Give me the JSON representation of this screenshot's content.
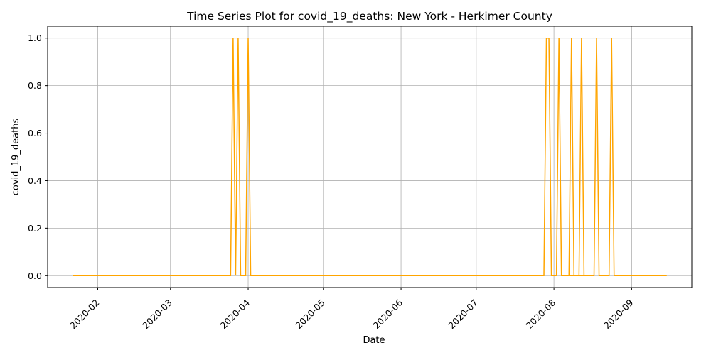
{
  "chart_data": {
    "type": "line",
    "title": "Time Series Plot for covid_19_deaths: New York - Herkimer County",
    "xlabel": "Date",
    "ylabel": "covid_19_deaths",
    "xlim": [
      "2020-01-12",
      "2020-09-25"
    ],
    "ylim": [
      -0.05,
      1.05
    ],
    "grid": true,
    "legend": "none",
    "line_color": "#ffa500",
    "x_ticks": [
      "2020-02",
      "2020-03",
      "2020-04",
      "2020-05",
      "2020-06",
      "2020-07",
      "2020-08",
      "2020-09"
    ],
    "y_ticks": [
      "0.0",
      "0.2",
      "0.4",
      "0.6",
      "0.8",
      "1.0"
    ],
    "series": [
      {
        "x": [
          "2020-01-22",
          "2020-03-25",
          "2020-03-26",
          "2020-03-27",
          "2020-03-28",
          "2020-03-29",
          "2020-03-30",
          "2020-03-31",
          "2020-04-01",
          "2020-04-02",
          "2020-07-28",
          "2020-07-29",
          "2020-07-30",
          "2020-07-31",
          "2020-08-01",
          "2020-08-02",
          "2020-08-03",
          "2020-08-04",
          "2020-08-17",
          "2020-08-18",
          "2020-08-19",
          "2020-08-23",
          "2020-08-24",
          "2020-08-25",
          "2020-09-15"
        ],
        "values": [
          0,
          0,
          1,
          0,
          1,
          0,
          0,
          0,
          1,
          0,
          0,
          1,
          1,
          0,
          0,
          0,
          1,
          0,
          0,
          1,
          0,
          0,
          1,
          0,
          0
        ]
      },
      {
        "x": [
          "2020-08-07",
          "2020-08-08",
          "2020-08-09",
          "2020-08-10",
          "2020-08-11",
          "2020-08-12",
          "2020-08-13"
        ],
        "values": [
          0,
          1,
          0,
          0,
          0,
          1,
          0
        ]
      }
    ]
  }
}
